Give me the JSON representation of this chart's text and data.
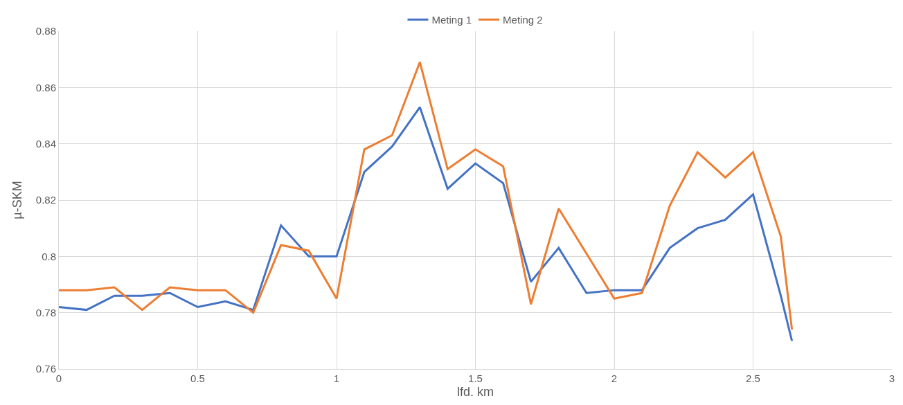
{
  "chart_data": {
    "type": "line",
    "xlabel": "lfd. km",
    "ylabel": "µ-SKM",
    "x": [
      0,
      0.1,
      0.2,
      0.3,
      0.4,
      0.5,
      0.6,
      0.7,
      0.8,
      0.9,
      1.0,
      1.1,
      1.2,
      1.3,
      1.4,
      1.5,
      1.6,
      1.7,
      1.8,
      1.9,
      2.0,
      2.1,
      2.2,
      2.3,
      2.4,
      2.5,
      2.6,
      2.64
    ],
    "series": [
      {
        "name": "Meting 1",
        "color": "#4472c4",
        "values": [
          0.782,
          0.781,
          0.786,
          0.786,
          0.787,
          0.782,
          0.784,
          0.781,
          0.811,
          0.8,
          0.8,
          0.83,
          0.839,
          0.853,
          0.824,
          0.833,
          0.826,
          0.791,
          0.803,
          0.787,
          0.788,
          0.788,
          0.803,
          0.81,
          0.813,
          0.822,
          0.786,
          0.77
        ]
      },
      {
        "name": "Meting 2",
        "color": "#ed7d31",
        "values": [
          0.788,
          0.788,
          0.789,
          0.781,
          0.789,
          0.788,
          0.788,
          0.78,
          0.804,
          0.802,
          0.785,
          0.838,
          0.843,
          0.869,
          0.831,
          0.838,
          0.832,
          0.783,
          0.817,
          0.801,
          0.785,
          0.787,
          0.818,
          0.837,
          0.828,
          0.837,
          0.807,
          0.774
        ]
      }
    ],
    "xlim": [
      0,
      3
    ],
    "xticks": [
      0,
      0.5,
      1,
      1.5,
      2,
      2.5,
      3
    ],
    "ylim": [
      0.76,
      0.88
    ],
    "yticks": [
      0.76,
      0.78,
      0.8,
      0.82,
      0.84,
      0.86,
      0.88
    ],
    "grid": true,
    "legend": "top",
    "marker": "none",
    "line_style": "solid"
  }
}
